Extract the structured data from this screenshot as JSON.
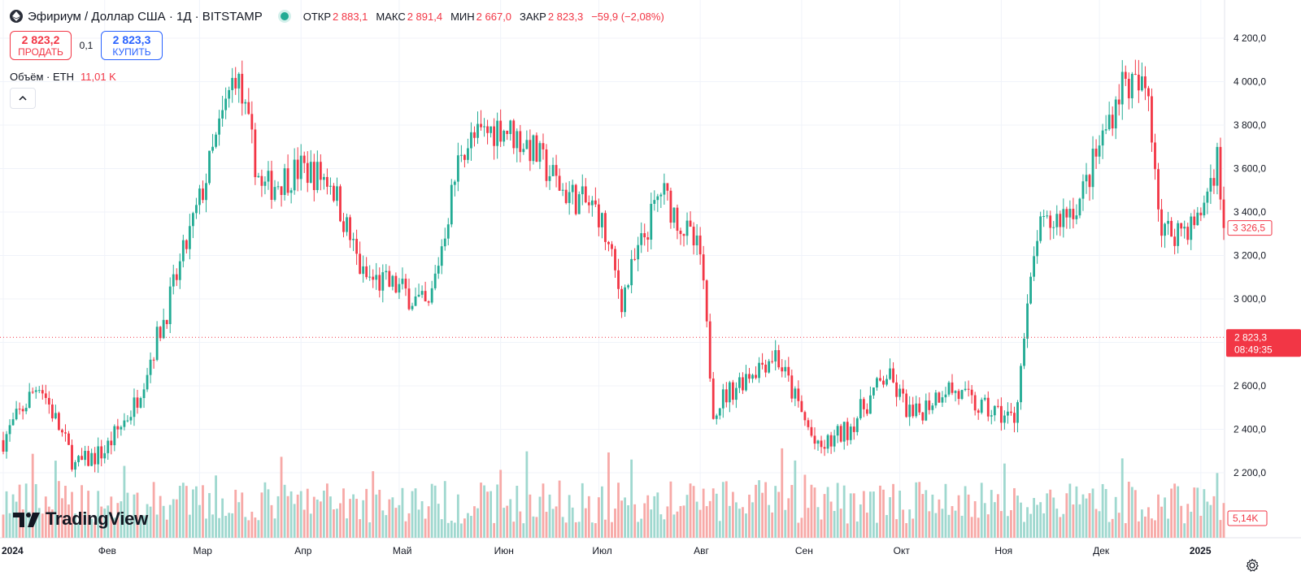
{
  "header": {
    "title": "Эфириум / Доллар США · 1Д · BITSTAMP",
    "ohlc": [
      {
        "label": "ОТКР",
        "value": "2 883,1"
      },
      {
        "label": "МАКС",
        "value": "2 891,4"
      },
      {
        "label": "МИН",
        "value": "2 667,0"
      },
      {
        "label": "ЗАКР",
        "value": "2 823,3"
      }
    ],
    "change": "−59,9 (−2,08%)"
  },
  "trade": {
    "sell_price": "2 823,2",
    "sell_label": "ПРОДАТЬ",
    "spread": "0,1",
    "buy_price": "2 823,3",
    "buy_label": "КУПИТЬ"
  },
  "volume_legend": {
    "label": "Объём · ETH",
    "value": "11,01 K"
  },
  "brand": {
    "name": "TradingView"
  },
  "colors": {
    "up": "#22ab94",
    "down": "#f23645",
    "up_volume": "#9fd8cf",
    "down_volume": "#f7a9a7"
  },
  "chart_data": {
    "type": "candlestick",
    "title": "Эфириум / Доллар США · 1Д · BITSTAMP",
    "y_axis": {
      "min": 2000,
      "max": 4200,
      "ticks": [
        "2 200,0",
        "2 400,0",
        "2 600,0",
        "2 800,0",
        "3 000,0",
        "3 200,0",
        "3 400,0",
        "3 600,0",
        "3 800,0",
        "4 000,0",
        "4 200,0"
      ],
      "side": "right"
    },
    "x_axis": {
      "labels": [
        "2024",
        "Фев",
        "Мар",
        "Апр",
        "Май",
        "Июн",
        "Июл",
        "Авг",
        "Сен",
        "Окт",
        "Ноя",
        "Дек",
        "2025"
      ]
    },
    "current_price": {
      "value": 2823.3,
      "label": "2 823,3",
      "countdown": "08:49:35"
    },
    "previous_marker": {
      "value": 3326.5,
      "label": "3 326,5"
    },
    "volume_marker": {
      "label": "5,14K"
    },
    "grid": true,
    "candles_approx_close": [
      {
        "date": "2024-01-01",
        "close": 2350
      },
      {
        "date": "2024-01-12",
        "close": 2620
      },
      {
        "date": "2024-01-23",
        "close": 2230
      },
      {
        "date": "2024-02-01",
        "close": 2300
      },
      {
        "date": "2024-02-10",
        "close": 2510
      },
      {
        "date": "2024-02-20",
        "close": 2950
      },
      {
        "date": "2024-03-01",
        "close": 3450
      },
      {
        "date": "2024-03-12",
        "close": 4050
      },
      {
        "date": "2024-03-20",
        "close": 3500
      },
      {
        "date": "2024-04-01",
        "close": 3600
      },
      {
        "date": "2024-04-10",
        "close": 3550
      },
      {
        "date": "2024-04-20",
        "close": 3100
      },
      {
        "date": "2024-05-01",
        "close": 3050
      },
      {
        "date": "2024-05-10",
        "close": 2950
      },
      {
        "date": "2024-05-20",
        "close": 3700
      },
      {
        "date": "2024-06-01",
        "close": 3800
      },
      {
        "date": "2024-06-10",
        "close": 3700
      },
      {
        "date": "2024-06-20",
        "close": 3500
      },
      {
        "date": "2024-07-01",
        "close": 3400
      },
      {
        "date": "2024-07-08",
        "close": 3000
      },
      {
        "date": "2024-07-20",
        "close": 3500
      },
      {
        "date": "2024-08-01",
        "close": 3200
      },
      {
        "date": "2024-08-05",
        "close": 2500
      },
      {
        "date": "2024-08-15",
        "close": 2650
      },
      {
        "date": "2024-08-24",
        "close": 2750
      },
      {
        "date": "2024-09-06",
        "close": 2300
      },
      {
        "date": "2024-09-15",
        "close": 2400
      },
      {
        "date": "2024-09-27",
        "close": 2650
      },
      {
        "date": "2024-10-05",
        "close": 2450
      },
      {
        "date": "2024-10-15",
        "close": 2600
      },
      {
        "date": "2024-10-25",
        "close": 2500
      },
      {
        "date": "2024-11-05",
        "close": 2450
      },
      {
        "date": "2024-11-12",
        "close": 3300
      },
      {
        "date": "2024-11-25",
        "close": 3450
      },
      {
        "date": "2024-12-01",
        "close": 3700
      },
      {
        "date": "2024-12-08",
        "close": 4000
      },
      {
        "date": "2024-12-16",
        "close": 3950
      },
      {
        "date": "2024-12-20",
        "close": 3300
      },
      {
        "date": "2024-12-31",
        "close": 3350
      },
      {
        "date": "2025-01-06",
        "close": 3650
      },
      {
        "date": "2025-01-08",
        "close": 3326.5
      }
    ]
  }
}
